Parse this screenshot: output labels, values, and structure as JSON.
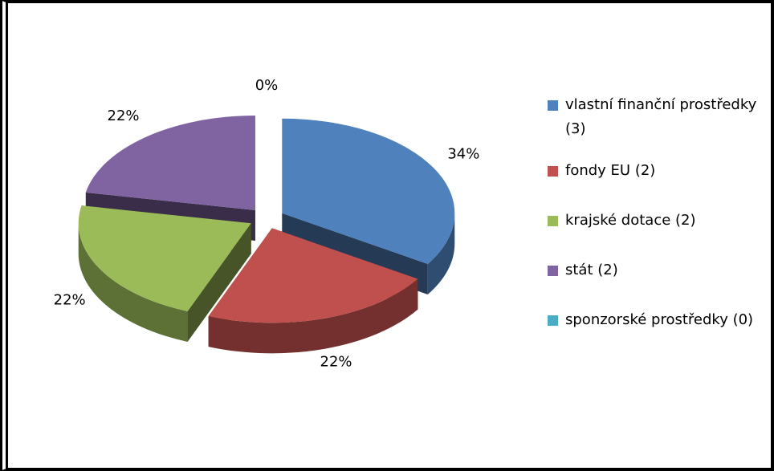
{
  "chart_data": {
    "type": "pie",
    "categories": [
      "vlastní finanční prostředky (3)",
      "fondy EU (2)",
      "krajské dotace (2)",
      "stát (2)",
      "sponzorské prostředky (0)"
    ],
    "values": [
      34,
      22,
      22,
      22,
      0
    ],
    "value_labels": [
      "34%",
      "22%",
      "22%",
      "22%",
      "0%"
    ],
    "colors": [
      "#4f81bd",
      "#c0504d",
      "#9bbb59",
      "#8064a2",
      "#4bacc6"
    ],
    "legend": "right"
  }
}
